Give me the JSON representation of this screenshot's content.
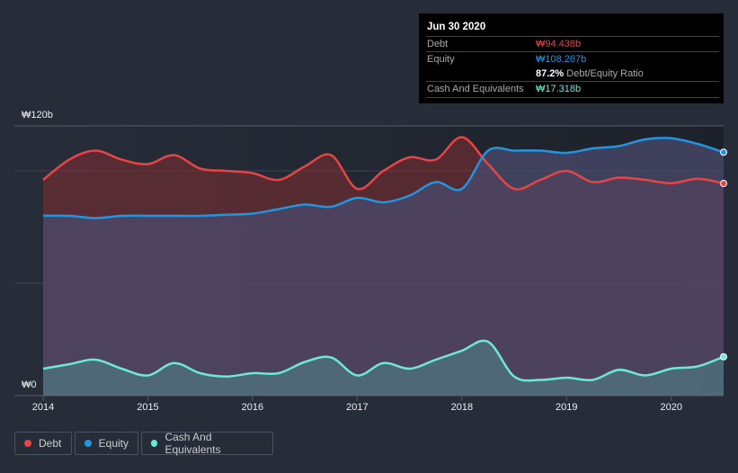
{
  "tooltip": {
    "date": "Jun 30 2020",
    "debt_label": "Debt",
    "debt_value": "₩94.438b",
    "equity_label": "Equity",
    "equity_value": "₩108.267b",
    "ratio_value": "87.2%",
    "ratio_label": "Debt/Equity Ratio",
    "cash_label": "Cash And Equivalents",
    "cash_value": "₩17.318b"
  },
  "legend": {
    "debt": "Debt",
    "equity": "Equity",
    "cash": "Cash And Equivalents"
  },
  "colors": {
    "debt": "#e64545",
    "equity": "#2394df",
    "cash": "#6ee8d6"
  },
  "chart_data": {
    "type": "area",
    "y_tick_labels": {
      "top": "₩120b",
      "bottom": "₩0"
    },
    "ylim": [
      0,
      120
    ],
    "xlim": [
      2014,
      2020.5
    ],
    "x_ticks": [
      "2014",
      "2015",
      "2016",
      "2017",
      "2018",
      "2019",
      "2020"
    ],
    "x": [
      2014,
      2014.25,
      2014.5,
      2014.75,
      2015,
      2015.25,
      2015.5,
      2015.75,
      2016,
      2016.25,
      2016.5,
      2016.75,
      2017,
      2017.25,
      2017.5,
      2017.75,
      2018,
      2018.25,
      2018.5,
      2018.75,
      2019,
      2019.25,
      2019.5,
      2019.75,
      2020,
      2020.25,
      2020.5
    ],
    "series": [
      {
        "name": "Debt",
        "values": [
          96,
          105,
          109,
          105,
          103,
          107,
          101,
          100,
          99,
          96,
          102,
          107,
          92,
          100,
          106,
          105,
          115,
          103,
          92,
          96,
          100,
          95,
          97,
          96,
          94.5,
          96.5,
          94.4
        ]
      },
      {
        "name": "Equity",
        "values": [
          80,
          80,
          79,
          80,
          80,
          80,
          80,
          80.5,
          81,
          83,
          85,
          84,
          88,
          86,
          89,
          95,
          92,
          109,
          109,
          109,
          108,
          110,
          111,
          114,
          114.5,
          112,
          108.3
        ]
      },
      {
        "name": "Cash And Equivalents",
        "values": [
          12,
          14,
          16,
          12,
          9,
          14.5,
          10,
          8.5,
          10,
          10,
          15,
          17,
          9,
          14.5,
          12,
          16,
          20,
          24,
          8.5,
          7,
          8,
          7,
          11.5,
          9,
          12,
          13,
          17.3
        ]
      }
    ]
  }
}
